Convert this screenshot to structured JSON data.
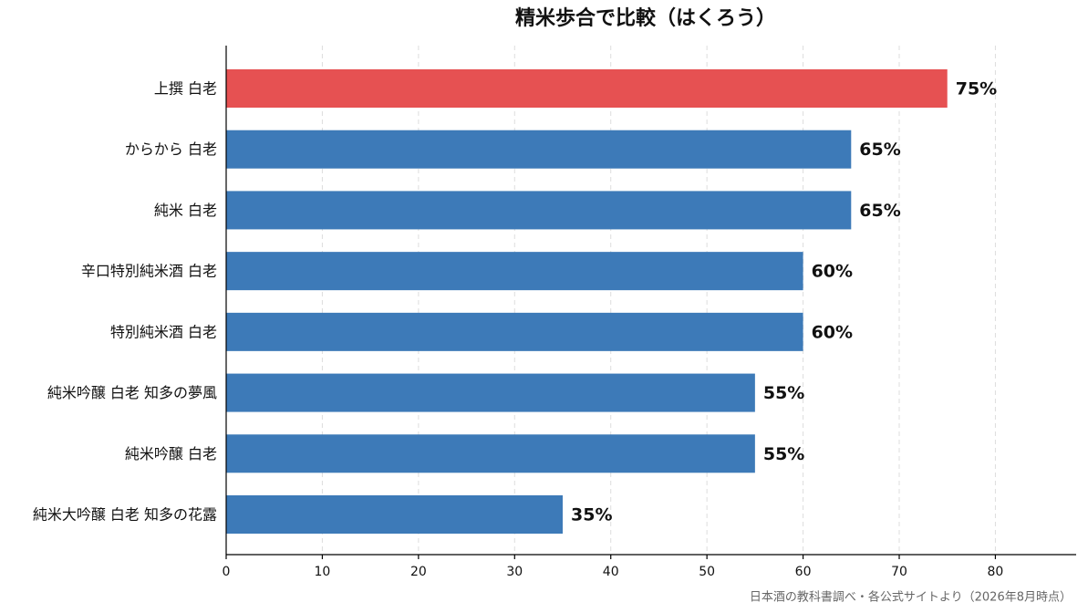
{
  "chart_data": {
    "type": "barh",
    "title": "精米歩合で比較（はくろう）",
    "categories": [
      "上撰 白老",
      "からから 白老",
      "純米 白老",
      "辛口特別純米酒 白老",
      "特別純米酒 白老",
      "純米吟醸 白老 知多の夢風",
      "純米吟醸 白老",
      "純米大吟醸 白老 知多の花露"
    ],
    "values": [
      75,
      65,
      65,
      60,
      60,
      55,
      55,
      35
    ],
    "value_labels": [
      "75%",
      "65%",
      "65%",
      "60%",
      "60%",
      "55%",
      "55%",
      "35%"
    ],
    "colors": [
      "#e65152",
      "#3d7ab8",
      "#3d7ab8",
      "#3d7ab8",
      "#3d7ab8",
      "#3d7ab8",
      "#3d7ab8",
      "#3d7ab8"
    ],
    "xlim": [
      0,
      88.4
    ],
    "xticks": [
      0,
      10,
      20,
      30,
      40,
      50,
      60,
      70,
      80
    ],
    "grid": true,
    "note": "日本酒の教科書調べ・各公式サイトより（2026年8月時点）"
  }
}
